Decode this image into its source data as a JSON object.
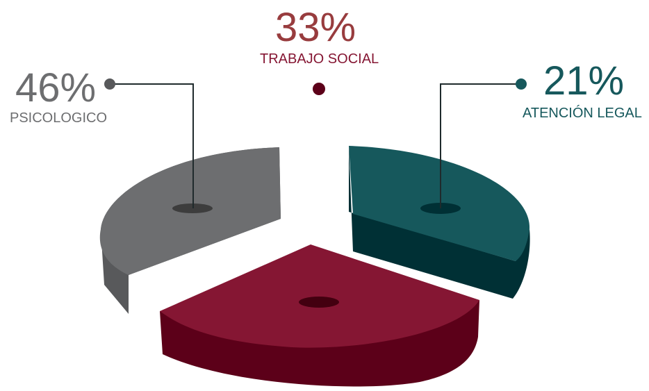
{
  "chart_data": {
    "type": "pie",
    "style": "3d-exploded",
    "slices": [
      {
        "label": "PSICOLOGICO",
        "value": 46,
        "value_text": "46%",
        "color": "#6d6e70",
        "side_color": "#58595b"
      },
      {
        "label": "TRABAJO SOCIAL",
        "value": 33,
        "value_text": "33%",
        "color": "#851633",
        "side_color": "#5c0019"
      },
      {
        "label": "ATENCIÓN LEGAL",
        "value": 21,
        "value_text": "21%",
        "color": "#16585c",
        "side_color": "#003035"
      }
    ],
    "label_colors": {
      "psicologico_value": "#6d6e70",
      "psicologico_label": "#6d6e70",
      "trabajo_value": "#983c3e",
      "trabajo_label": "#851633",
      "legal_value": "#16585c",
      "legal_label": "#16585c"
    }
  }
}
